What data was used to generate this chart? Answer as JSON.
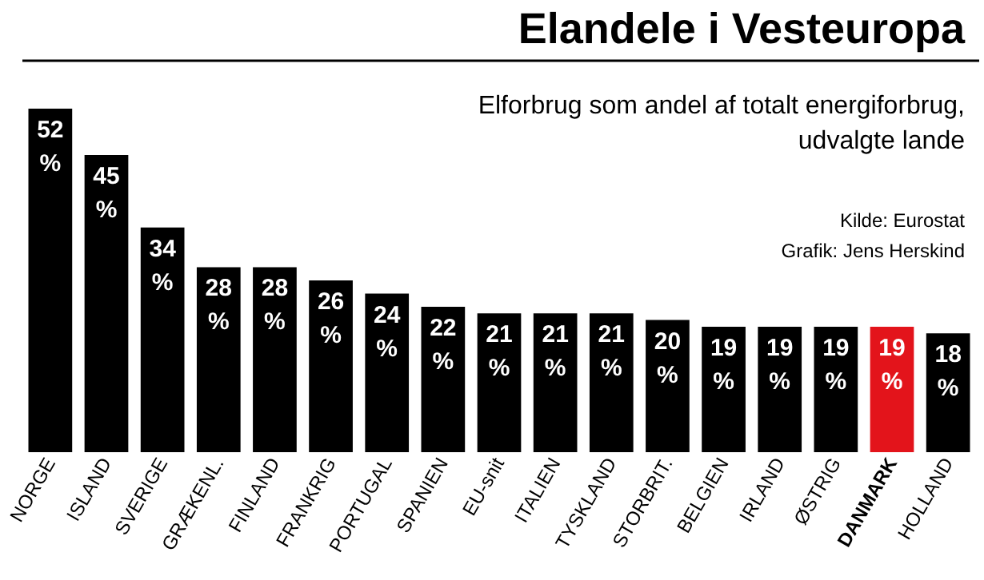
{
  "chart_data": {
    "type": "bar",
    "title": "Elandele i Vesteuropa",
    "subtitle": "Elforbrug som andel af totalt energiforbrug,\nudvalgte lande",
    "annotations": [
      "Kilde: Eurostat",
      "Grafik: Jens Herskind"
    ],
    "categories": [
      "NORGE",
      "ISLAND",
      "SVERIGE",
      "GRÆKENL.",
      "FINLAND",
      "FRANKRIG",
      "PORTUGAL",
      "SPANIEN",
      "EU-snit",
      "ITALIEN",
      "TYSKLAND",
      "STORBRIT.",
      "BELGIEN",
      "IRLAND",
      "ØSTRIG",
      "DANMARK",
      "HOLLAND"
    ],
    "values": [
      52,
      45,
      34,
      28,
      28,
      26,
      24,
      22,
      21,
      21,
      21,
      20,
      19,
      19,
      19,
      19,
      18
    ],
    "value_labels": [
      "52\n%",
      "45\n%",
      "34\n%",
      "28\n%",
      "28\n%",
      "26\n%",
      "24\n%",
      "22\n%",
      "21\n%",
      "21\n%",
      "21\n%",
      "20\n%",
      "19\n%",
      "19\n%",
      "19\n%",
      "19\n%",
      "18\n%"
    ],
    "colors": [
      "#000000",
      "#000000",
      "#000000",
      "#000000",
      "#000000",
      "#000000",
      "#000000",
      "#000000",
      "#000000",
      "#000000",
      "#000000",
      "#000000",
      "#000000",
      "#000000",
      "#000000",
      "#e3141b",
      "#000000"
    ],
    "grid": false
  }
}
